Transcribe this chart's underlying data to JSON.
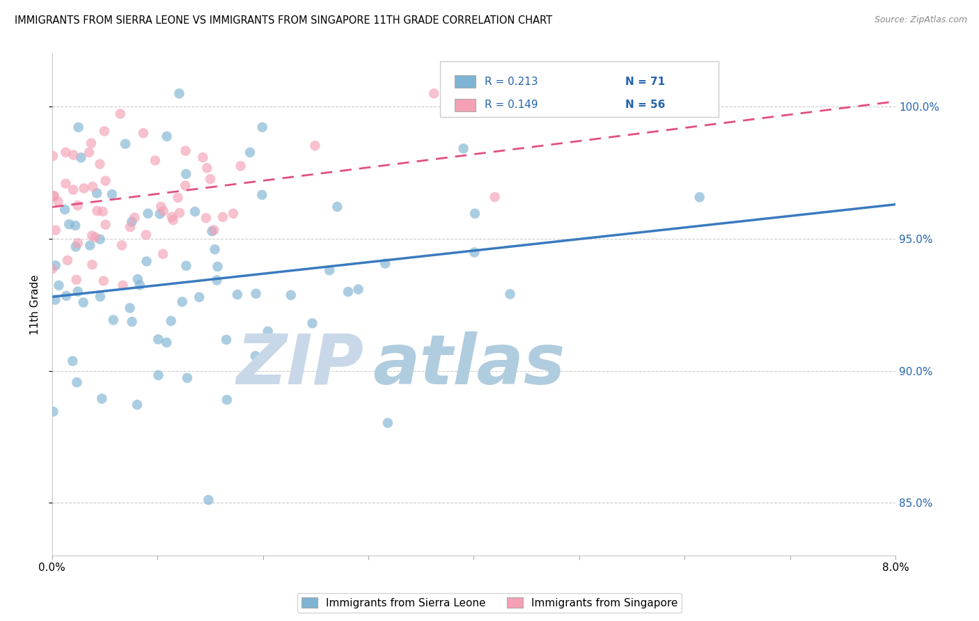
{
  "title": "IMMIGRANTS FROM SIERRA LEONE VS IMMIGRANTS FROM SINGAPORE 11TH GRADE CORRELATION CHART",
  "source": "Source: ZipAtlas.com",
  "ylabel": "11th Grade",
  "legend_label1": "Immigrants from Sierra Leone",
  "legend_label2": "Immigrants from Singapore",
  "R1": 0.213,
  "N1": 71,
  "R2": 0.149,
  "N2": 56,
  "color_blue": "#7fb3d3",
  "color_pink": "#f4a0b5",
  "color_blue_line": "#3a7abf",
  "color_pink_line": "#e05080",
  "color_blue_text": "#2464ae",
  "xlim": [
    0.0,
    0.08
  ],
  "ylim": [
    0.83,
    1.02
  ],
  "yticks": [
    0.85,
    0.9,
    0.95,
    1.0
  ],
  "ytick_labels": [
    "85.0%",
    "90.0%",
    "95.0%",
    "100.0%"
  ],
  "watermark_zip_color": "#c8d8e8",
  "watermark_atlas_color": "#b0ccdf",
  "sl_trend_x0": 0.0,
  "sl_trend_y0": 0.928,
  "sl_trend_x1": 0.08,
  "sl_trend_y1": 0.963,
  "sg_trend_x0": 0.0,
  "sg_trend_y0": 0.962,
  "sg_trend_x1": 0.08,
  "sg_trend_y1": 1.002
}
